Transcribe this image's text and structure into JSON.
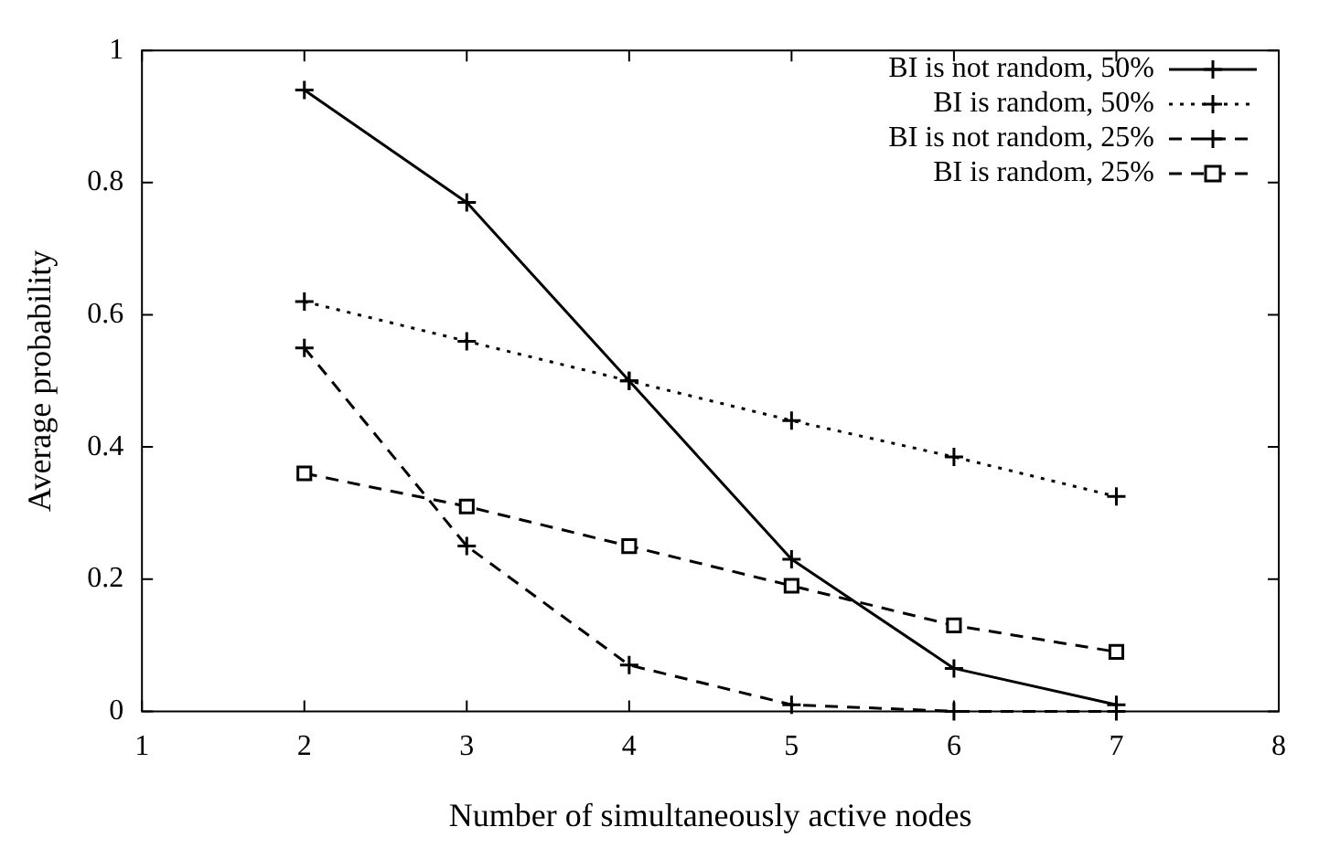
{
  "chart_data": {
    "type": "line",
    "xlabel": "Number of simultaneously active nodes",
    "ylabel": "Average probability",
    "x": [
      2,
      3,
      4,
      5,
      6,
      7
    ],
    "series": [
      {
        "name": "BI is not random, 50%",
        "color": "#000000",
        "marker": "cross",
        "line_style": "solid",
        "values": [
          0.94,
          0.77,
          0.5,
          0.23,
          0.065,
          0.01
        ]
      },
      {
        "name": "BI is random, 50%",
        "color": "#000000",
        "marker": "cross",
        "line_style": "dotted",
        "values": [
          0.62,
          0.56,
          0.5,
          0.44,
          0.385,
          0.325
        ]
      },
      {
        "name": "BI is not random, 25%",
        "color": "#000000",
        "marker": "cross",
        "line_style": "dashed",
        "values": [
          0.55,
          0.25,
          0.07,
          0.01,
          0,
          0
        ]
      },
      {
        "name": "BI is random, 25%",
        "color": "#000000",
        "marker": "square",
        "line_style": "dashed",
        "values": [
          0.36,
          0.31,
          0.25,
          0.19,
          0.13,
          0.09
        ]
      }
    ],
    "xlim": [
      1,
      8
    ],
    "xticks": [
      1,
      2,
      3,
      4,
      5,
      6,
      7,
      8
    ],
    "ylim": [
      0,
      1
    ],
    "yticks": [
      0,
      0.2,
      0.4,
      0.6,
      0.8,
      1
    ],
    "grid": false,
    "legend": "top right"
  }
}
